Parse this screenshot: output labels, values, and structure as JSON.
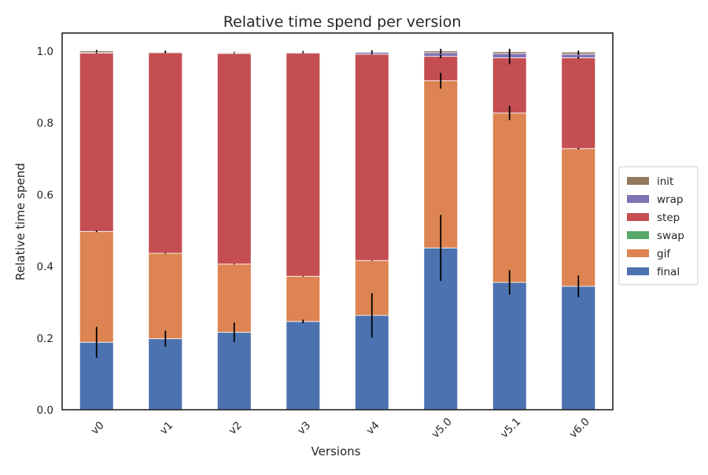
{
  "chart_data": {
    "type": "bar",
    "stacked": true,
    "title": "Relative time spend per version",
    "xlabel": "Versions",
    "ylabel": "Relative time spend",
    "ylim": [
      0,
      1.05
    ],
    "yticks": [
      0.0,
      0.2,
      0.4,
      0.6,
      0.8,
      1.0
    ],
    "ytick_labels": [
      "0.0",
      "0.2",
      "0.4",
      "0.6",
      "0.8",
      "1.0"
    ],
    "categories": [
      "v0",
      "v1",
      "v2",
      "v3",
      "v4",
      "v5.0",
      "v5.1",
      "v6.0"
    ],
    "grid": false,
    "legend_position": "center-right-outside",
    "series": [
      {
        "name": "final",
        "color": "#4c72b0",
        "values": [
          0.188,
          0.198,
          0.216,
          0.246,
          0.263,
          0.451,
          0.355,
          0.344
        ],
        "err": [
          0.043,
          0.022,
          0.027,
          0.005,
          0.062,
          0.092,
          0.034,
          0.03
        ]
      },
      {
        "name": "gif",
        "color": "#dd8452",
        "values": [
          0.309,
          0.238,
          0.19,
          0.126,
          0.153,
          0.466,
          0.472,
          0.384
        ],
        "err": [
          0.002,
          0.001,
          0.001,
          0.001,
          0.001,
          0.022,
          0.02,
          0.002
        ]
      },
      {
        "name": "swap",
        "color": "#55a868",
        "values": [
          0.0,
          0.0,
          0.0,
          0.0,
          0.0,
          0.0,
          0.0,
          0.0
        ],
        "err": [
          0,
          0,
          0,
          0,
          0,
          0,
          0,
          0
        ]
      },
      {
        "name": "step",
        "color": "#c44e52",
        "values": [
          0.497,
          0.559,
          0.587,
          0.622,
          0.575,
          0.068,
          0.154,
          0.253
        ],
        "err": [
          0.001,
          0.001,
          0.001,
          0.001,
          0.001,
          0.005,
          0.018,
          0.003
        ]
      },
      {
        "name": "wrap",
        "color": "#8172b3",
        "values": [
          0.001,
          0.001,
          0.002,
          0.002,
          0.005,
          0.01,
          0.012,
          0.01
        ],
        "err": [
          0,
          0,
          0,
          0,
          0.001,
          0.002,
          0.002,
          0.002
        ]
      },
      {
        "name": "init",
        "color": "#937860",
        "values": [
          0.005,
          0.002,
          0.002,
          0.002,
          0.002,
          0.005,
          0.005,
          0.006
        ],
        "err": [
          0.003,
          0.003,
          0.001,
          0.002,
          0.004,
          0.006,
          0.008,
          0.004
        ]
      }
    ],
    "legend_order": [
      "init",
      "wrap",
      "step",
      "swap",
      "gif",
      "final"
    ],
    "error_bar_color": "#000000",
    "axis_color": "#262626"
  }
}
